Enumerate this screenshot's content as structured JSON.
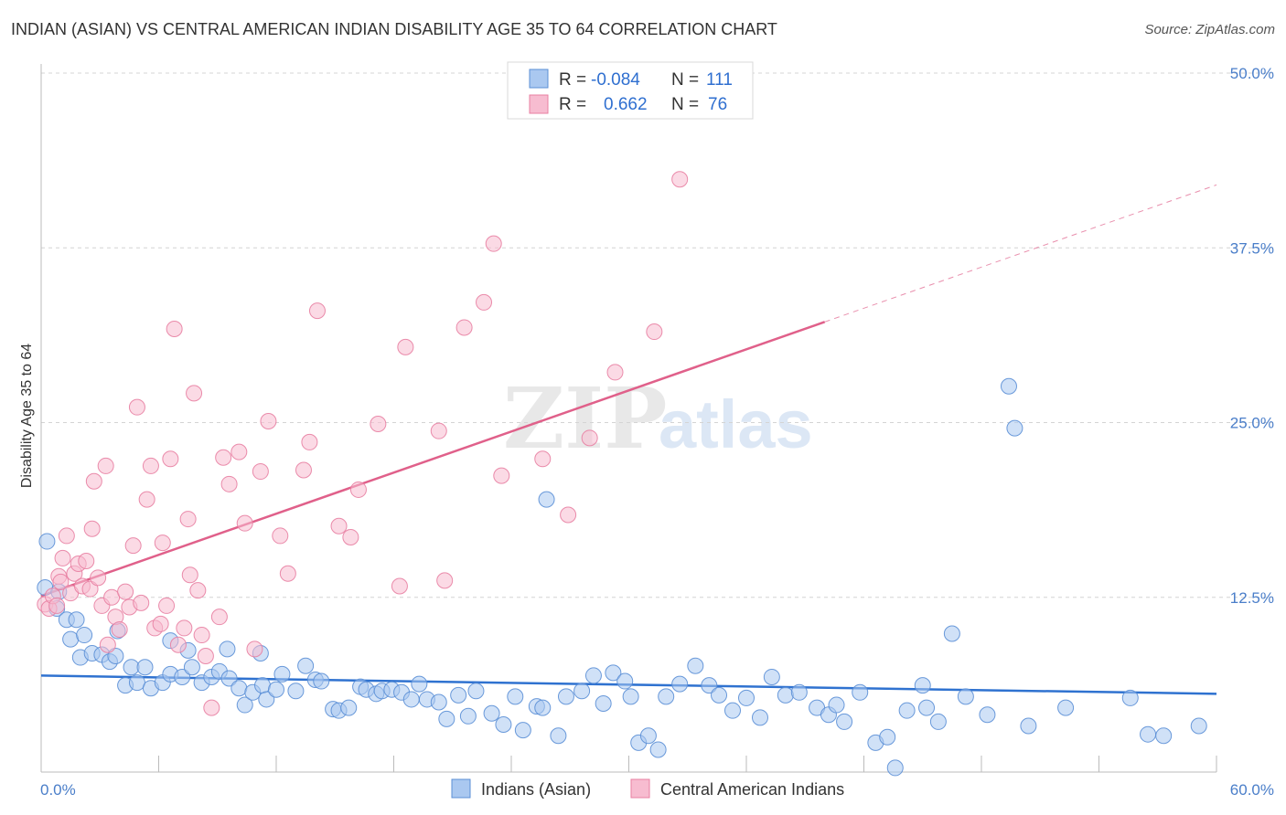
{
  "header": {
    "title": "INDIAN (ASIAN) VS CENTRAL AMERICAN INDIAN DISABILITY AGE 35 TO 64 CORRELATION CHART",
    "source": "Source: ZipAtlas.com"
  },
  "legend": {
    "r_label": "R =",
    "n_label": "N =",
    "rows": [
      {
        "r": "-0.084",
        "n": "111"
      },
      {
        "r": "0.662",
        "n": "76"
      }
    ]
  },
  "watermark": {
    "zip": "ZIP",
    "atlas": "atlas"
  },
  "chart_data": {
    "type": "scatter",
    "title": "INDIAN (ASIAN) VS CENTRAL AMERICAN INDIAN DISABILITY AGE 35 TO 64 CORRELATION CHART",
    "xlabel": "",
    "ylabel": "Disability Age 35 to 64",
    "xlim": [
      0,
      60
    ],
    "ylim": [
      0,
      50
    ],
    "x_tick_labels": [
      "0.0%",
      "60.0%"
    ],
    "y_tick_labels": [
      "12.5%",
      "25.0%",
      "37.5%",
      "50.0%"
    ],
    "y_ticks": [
      12.5,
      25.0,
      37.5,
      50.0
    ],
    "grid": true,
    "legend_position": "top-center",
    "colors": {
      "blue_fill": "#aac8f0",
      "blue_stroke": "#5b8fd6",
      "blue_line": "#2f72d0",
      "pink_fill": "#f7bcd0",
      "pink_stroke": "#e87fa2",
      "pink_line": "#e0608a"
    },
    "series": [
      {
        "name": "Indians (Asian)",
        "color": "#5b8fd6",
        "trend": {
          "x": [
            0,
            60
          ],
          "y": [
            6.9,
            5.6
          ]
        },
        "points": [
          [
            0.2,
            13.2
          ],
          [
            0.8,
            11.7
          ],
          [
            1.3,
            10.9
          ],
          [
            1.5,
            9.5
          ],
          [
            2.0,
            8.2
          ],
          [
            2.2,
            9.8
          ],
          [
            2.6,
            8.5
          ],
          [
            3.1,
            8.4
          ],
          [
            3.5,
            7.9
          ],
          [
            3.8,
            8.3
          ],
          [
            4.3,
            6.2
          ],
          [
            4.6,
            7.5
          ],
          [
            4.9,
            6.4
          ],
          [
            5.3,
            7.5
          ],
          [
            5.6,
            6.0
          ],
          [
            6.2,
            6.4
          ],
          [
            6.6,
            7.0
          ],
          [
            7.2,
            6.8
          ],
          [
            7.5,
            8.7
          ],
          [
            7.7,
            7.5
          ],
          [
            8.2,
            6.4
          ],
          [
            8.7,
            6.8
          ],
          [
            9.1,
            7.2
          ],
          [
            9.6,
            6.7
          ],
          [
            10.1,
            6.0
          ],
          [
            10.4,
            4.8
          ],
          [
            10.8,
            5.7
          ],
          [
            11.3,
            6.2
          ],
          [
            11.5,
            5.2
          ],
          [
            12.0,
            5.9
          ],
          [
            12.3,
            7.0
          ],
          [
            13.0,
            5.8
          ],
          [
            13.5,
            7.6
          ],
          [
            14.0,
            6.6
          ],
          [
            14.3,
            6.5
          ],
          [
            14.9,
            4.5
          ],
          [
            15.2,
            4.4
          ],
          [
            15.7,
            4.6
          ],
          [
            16.3,
            6.1
          ],
          [
            16.6,
            5.9
          ],
          [
            17.1,
            5.6
          ],
          [
            17.4,
            5.8
          ],
          [
            17.9,
            5.9
          ],
          [
            18.4,
            5.7
          ],
          [
            18.9,
            5.2
          ],
          [
            19.3,
            6.3
          ],
          [
            19.7,
            5.2
          ],
          [
            20.3,
            5.0
          ],
          [
            20.7,
            3.8
          ],
          [
            21.3,
            5.5
          ],
          [
            21.8,
            4.0
          ],
          [
            22.2,
            5.8
          ],
          [
            23.0,
            4.2
          ],
          [
            23.6,
            3.4
          ],
          [
            24.2,
            5.4
          ],
          [
            24.6,
            3.0
          ],
          [
            25.3,
            4.7
          ],
          [
            25.6,
            4.6
          ],
          [
            26.4,
            2.6
          ],
          [
            26.8,
            5.4
          ],
          [
            27.6,
            5.8
          ],
          [
            28.2,
            6.9
          ],
          [
            28.7,
            4.9
          ],
          [
            29.2,
            7.1
          ],
          [
            29.8,
            6.5
          ],
          [
            30.1,
            5.4
          ],
          [
            30.5,
            2.1
          ],
          [
            31.0,
            2.6
          ],
          [
            31.5,
            1.6
          ],
          [
            31.9,
            5.4
          ],
          [
            32.6,
            6.3
          ],
          [
            33.4,
            7.6
          ],
          [
            34.1,
            6.2
          ],
          [
            34.6,
            5.5
          ],
          [
            35.3,
            4.4
          ],
          [
            36.0,
            5.3
          ],
          [
            36.7,
            3.9
          ],
          [
            37.3,
            6.8
          ],
          [
            38.0,
            5.5
          ],
          [
            38.7,
            5.7
          ],
          [
            39.6,
            4.6
          ],
          [
            40.2,
            4.1
          ],
          [
            40.6,
            4.8
          ],
          [
            41.0,
            3.6
          ],
          [
            41.8,
            5.7
          ],
          [
            42.6,
            2.1
          ],
          [
            43.2,
            2.5
          ],
          [
            43.6,
            0.3
          ],
          [
            44.2,
            4.4
          ],
          [
            45.2,
            4.6
          ],
          [
            45.8,
            3.6
          ],
          [
            46.5,
            9.9
          ],
          [
            47.2,
            5.4
          ],
          [
            48.3,
            4.1
          ],
          [
            49.4,
            27.6
          ],
          [
            49.7,
            24.6
          ],
          [
            50.4,
            3.3
          ],
          [
            52.3,
            4.6
          ],
          [
            55.6,
            5.3
          ],
          [
            56.5,
            2.7
          ],
          [
            57.3,
            2.6
          ],
          [
            59.1,
            3.3
          ],
          [
            0.3,
            16.5
          ],
          [
            0.9,
            12.9
          ],
          [
            1.8,
            10.9
          ],
          [
            3.9,
            10.1
          ],
          [
            6.6,
            9.4
          ],
          [
            9.5,
            8.8
          ],
          [
            11.2,
            8.5
          ],
          [
            25.8,
            19.5
          ],
          [
            45.0,
            6.2
          ]
        ]
      },
      {
        "name": "Central American Indians",
        "color": "#e87fa2",
        "trend": {
          "x": [
            0,
            40
          ],
          "y": [
            12.6,
            32.2
          ]
        },
        "trend_dashed": {
          "x": [
            40,
            60
          ],
          "y": [
            32.2,
            42.0
          ]
        },
        "points": [
          [
            0.2,
            12.0
          ],
          [
            0.4,
            11.7
          ],
          [
            0.6,
            12.6
          ],
          [
            0.8,
            11.9
          ],
          [
            0.9,
            14.0
          ],
          [
            1.0,
            13.6
          ],
          [
            1.1,
            15.3
          ],
          [
            1.3,
            16.9
          ],
          [
            1.5,
            12.8
          ],
          [
            1.7,
            14.2
          ],
          [
            1.9,
            14.9
          ],
          [
            2.1,
            13.3
          ],
          [
            2.3,
            15.1
          ],
          [
            2.5,
            13.1
          ],
          [
            2.6,
            17.4
          ],
          [
            2.7,
            20.8
          ],
          [
            2.9,
            13.9
          ],
          [
            3.1,
            11.9
          ],
          [
            3.3,
            21.9
          ],
          [
            3.4,
            9.1
          ],
          [
            3.6,
            12.5
          ],
          [
            3.8,
            11.1
          ],
          [
            4.0,
            10.2
          ],
          [
            4.3,
            12.9
          ],
          [
            4.5,
            11.8
          ],
          [
            4.7,
            16.2
          ],
          [
            4.9,
            26.1
          ],
          [
            5.1,
            12.1
          ],
          [
            5.4,
            19.5
          ],
          [
            5.6,
            21.9
          ],
          [
            5.8,
            10.3
          ],
          [
            6.1,
            10.6
          ],
          [
            6.2,
            16.4
          ],
          [
            6.4,
            11.9
          ],
          [
            6.6,
            22.4
          ],
          [
            6.8,
            31.7
          ],
          [
            7.0,
            9.1
          ],
          [
            7.3,
            10.3
          ],
          [
            7.5,
            18.1
          ],
          [
            7.6,
            14.1
          ],
          [
            7.8,
            27.1
          ],
          [
            8.0,
            13.0
          ],
          [
            8.2,
            9.8
          ],
          [
            8.4,
            8.3
          ],
          [
            8.7,
            4.6
          ],
          [
            9.1,
            11.1
          ],
          [
            9.3,
            22.5
          ],
          [
            9.6,
            20.6
          ],
          [
            10.1,
            22.9
          ],
          [
            10.4,
            17.8
          ],
          [
            10.9,
            8.8
          ],
          [
            11.2,
            21.5
          ],
          [
            11.6,
            25.1
          ],
          [
            12.2,
            16.9
          ],
          [
            12.6,
            14.2
          ],
          [
            13.4,
            21.6
          ],
          [
            13.7,
            23.6
          ],
          [
            14.1,
            33.0
          ],
          [
            15.2,
            17.6
          ],
          [
            15.8,
            16.8
          ],
          [
            16.2,
            20.2
          ],
          [
            17.2,
            24.9
          ],
          [
            18.3,
            13.3
          ],
          [
            18.6,
            30.4
          ],
          [
            20.3,
            24.4
          ],
          [
            20.6,
            13.7
          ],
          [
            21.6,
            31.8
          ],
          [
            22.6,
            33.6
          ],
          [
            23.1,
            37.8
          ],
          [
            23.5,
            21.2
          ],
          [
            25.6,
            22.4
          ],
          [
            26.9,
            18.4
          ],
          [
            28.0,
            23.9
          ],
          [
            29.3,
            28.6
          ],
          [
            31.3,
            31.5
          ],
          [
            32.6,
            42.4
          ]
        ]
      }
    ]
  },
  "bottom_legend": [
    {
      "label": "Indians (Asian)"
    },
    {
      "label": "Central American Indians"
    }
  ]
}
